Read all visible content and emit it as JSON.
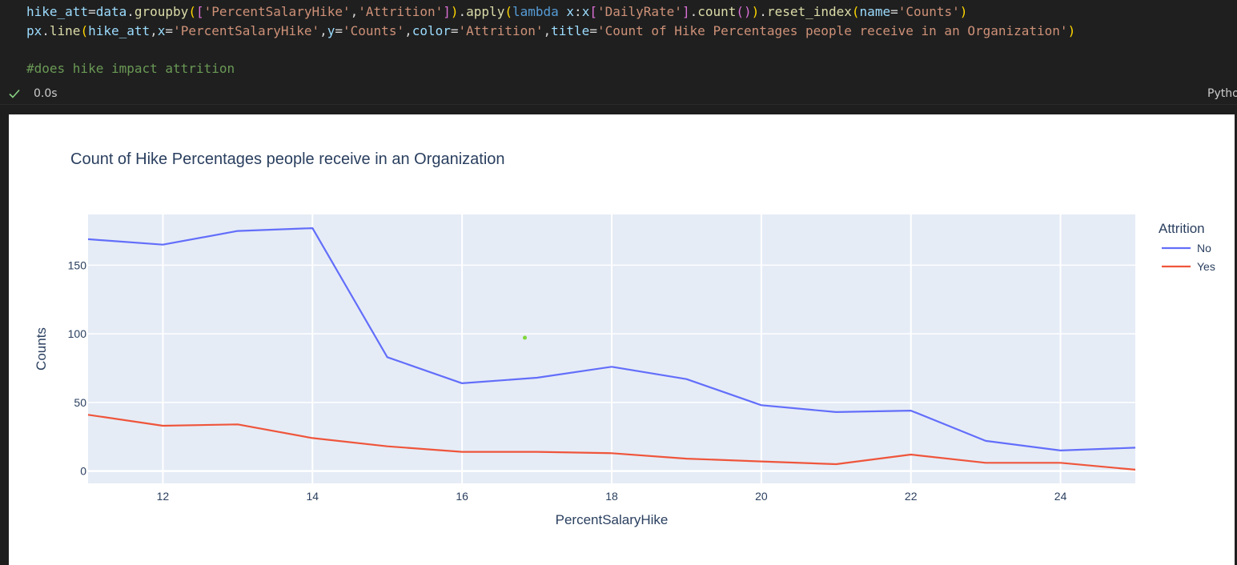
{
  "code": {
    "comment": "#does hike impact attrition"
  },
  "status": {
    "exec_time": "0.0s",
    "kernel": "Pytho"
  },
  "chart_data": {
    "type": "line",
    "title": "Count of Hike Percentages people receive in an Organization",
    "xlabel": "PercentSalaryHike",
    "ylabel": "Counts",
    "xlim": [
      11,
      25
    ],
    "ylim": [
      -9,
      187
    ],
    "x_ticks": [
      12,
      14,
      16,
      18,
      20,
      22,
      24
    ],
    "y_ticks": [
      0,
      50,
      100,
      150
    ],
    "legend_title": "Attrition",
    "legend_position": "right",
    "grid": true,
    "background_color": "#e5ecf6",
    "x": [
      11,
      12,
      13,
      14,
      15,
      16,
      17,
      18,
      19,
      20,
      21,
      22,
      23,
      24,
      25
    ],
    "series": [
      {
        "name": "No",
        "color": "#636efa",
        "values": [
          169,
          165,
          175,
          177,
          83,
          64,
          68,
          76,
          67,
          48,
          43,
          44,
          22,
          15,
          17
        ]
      },
      {
        "name": "Yes",
        "color": "#ef553b",
        "values": [
          41,
          33,
          34,
          24,
          18,
          14,
          14,
          13,
          9,
          7,
          5,
          12,
          6,
          6,
          1
        ]
      }
    ]
  }
}
